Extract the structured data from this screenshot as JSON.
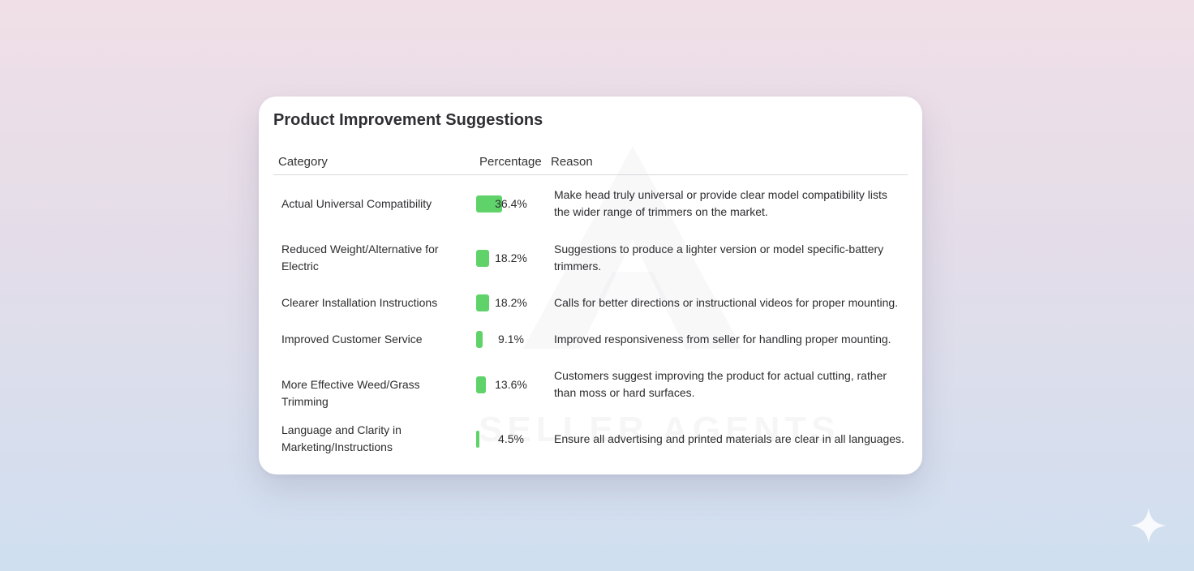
{
  "chart_data": {
    "type": "table",
    "title": "Product Improvement Suggestions",
    "columns": [
      "Category",
      "Percentage",
      "Reason"
    ],
    "rows": [
      {
        "category": "Actual Universal Compatibility",
        "value": 36.4,
        "label": "36.4%",
        "reason": "Make head truly universal or provide clear model compatibility lists the wider range of trimmers on the market."
      },
      {
        "category": "Reduced Weight/Alternative for Electric",
        "value": 18.2,
        "label": "18.2%",
        "reason": "Suggestions to produce a lighter version or model specific-battery trimmers."
      },
      {
        "category": "Clearer Installation Instructions",
        "value": 18.2,
        "label": "18.2%",
        "reason": "Calls for better directions or instructional videos for proper mounting."
      },
      {
        "category": "Improved Customer Service",
        "value": 9.1,
        "label": "9.1%",
        "reason": "Improved responsiveness from seller for handling proper mounting."
      },
      {
        "category": "More Effective Weed/Grass Trimming",
        "value": 13.6,
        "label": "13.6%",
        "reason": "Customers suggest improving the product for actual cutting, rather than moss or hard surfaces."
      },
      {
        "category": "Language and Clarity in Marketing/Instructions",
        "value": 4.5,
        "label": "4.5%",
        "reason": "Ensure all advertising and printed materials are clear in all languages."
      }
    ],
    "bar_max": 36.4,
    "bar_color": "#5fd36a"
  },
  "watermark": {
    "text": "SELLER AGENTS"
  },
  "colors": {
    "bar": "#5fd36a",
    "card": "#ffffff",
    "rule": "#d9d9dd"
  }
}
